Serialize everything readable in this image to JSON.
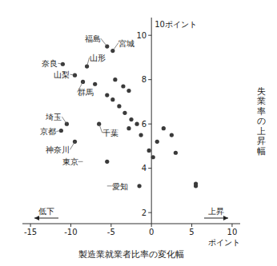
{
  "chart_data": {
    "type": "scatter",
    "xlabel": "製造業就業者比率の変化幅",
    "ylabel": "失業率の上昇幅",
    "x_unit": "ポイント",
    "y_unit": "10ポイント",
    "low_label": "低下",
    "high_label": "上昇",
    "x": [
      -5.5,
      -4.8,
      -11.0,
      -8.0,
      -9.5,
      -8.5,
      -7.0,
      -4.5,
      -3.5,
      -2.8,
      -5.5,
      -4.8,
      -4.0,
      -3.3,
      -2.5,
      -1.8,
      -2.8,
      -1.3,
      -0.3,
      0.7,
      1.5,
      2.5,
      -10.5,
      -11.2,
      -9.5,
      -6.5,
      -5.5,
      5.5,
      -1.5,
      0.2,
      3.0,
      5.5
    ],
    "values": [
      9.5,
      9.3,
      8.7,
      8.6,
      8.2,
      7.9,
      7.8,
      8.0,
      7.7,
      7.5,
      7.3,
      7.1,
      6.8,
      6.5,
      6.2,
      6.0,
      5.8,
      5.5,
      4.8,
      5.2,
      5.8,
      5.5,
      6.0,
      5.7,
      5.2,
      6.0,
      4.3,
      3.2,
      3.2,
      4.5,
      4.7,
      3.3
    ],
    "color": "#3a3a3a",
    "xlim": [
      -16,
      11
    ],
    "ylim": [
      1.5,
      10.8
    ],
    "xticks": [
      -15,
      -10,
      -5,
      0,
      5,
      10
    ],
    "yticks": [
      2,
      4,
      6,
      8,
      10
    ],
    "grid": false,
    "annotations": [
      {
        "text": "福島",
        "x": -5.5,
        "y": 9.5
      },
      {
        "text": "宮城",
        "x": -4.8,
        "y": 9.3
      },
      {
        "text": "山形",
        "x": -8.0,
        "y": 8.6
      },
      {
        "text": "奈良",
        "x": -11.0,
        "y": 8.7
      },
      {
        "text": "山梨",
        "x": -9.5,
        "y": 8.2
      },
      {
        "text": "群馬",
        "x": -8.5,
        "y": 7.9
      },
      {
        "text": "埼玉",
        "x": -10.5,
        "y": 6.0
      },
      {
        "text": "京都",
        "x": -11.2,
        "y": 5.7
      },
      {
        "text": "神奈川",
        "x": -9.5,
        "y": 5.2
      },
      {
        "text": "千葉",
        "x": -6.5,
        "y": 6.0
      },
      {
        "text": "東京",
        "x": -8.5,
        "y": 4.3
      },
      {
        "text": "愛知",
        "x": -5.5,
        "y": 3.2
      }
    ]
  }
}
